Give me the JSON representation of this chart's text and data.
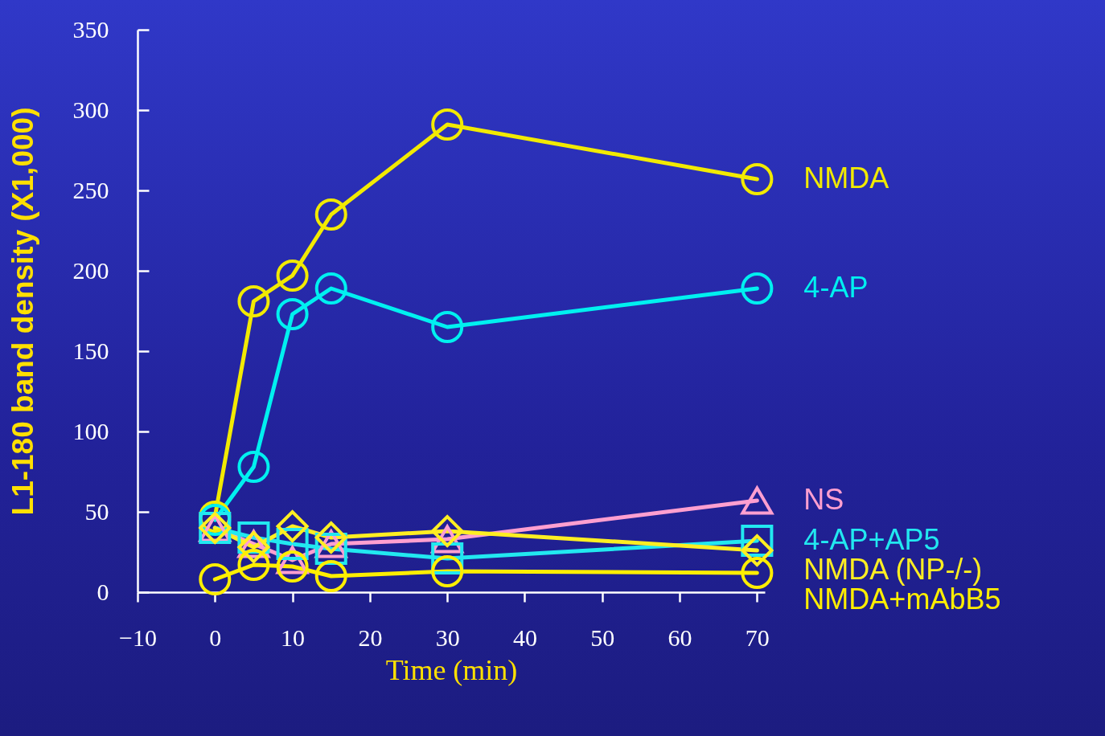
{
  "chart_data": {
    "type": "line",
    "xlabel": "Time (min)",
    "ylabel": "L1-180 band density (X1,000)",
    "x": [
      0,
      5,
      10,
      15,
      30,
      70
    ],
    "series": [
      {
        "name": "NMDA",
        "color": "#f2ea00",
        "marker": "circle",
        "values": [
          47,
          181,
          197,
          235,
          291,
          257
        ]
      },
      {
        "name": "4-AP",
        "color": "#00f0f0",
        "marker": "circle",
        "values": [
          45,
          78,
          173,
          189,
          165,
          189
        ]
      },
      {
        "name": "NS",
        "color": "#ff9fd0",
        "marker": "triangle",
        "values": [
          40,
          30,
          20,
          30,
          33,
          57
        ]
      },
      {
        "name": "4-AP+AP5",
        "color": "#22e8f0",
        "marker": "square",
        "values": [
          40,
          34,
          30,
          27,
          21,
          32
        ]
      },
      {
        "name": "NMDA (NP-/-)",
        "color": "#ffee22",
        "marker": "diamond",
        "values": [
          40,
          28,
          41,
          34,
          38,
          26
        ]
      },
      {
        "name": "NMDA+mAbB5",
        "color": "#ffee00",
        "marker": "circle",
        "values": [
          8,
          17,
          16,
          10,
          13,
          12
        ]
      }
    ],
    "xlim": [
      -10,
      71
    ],
    "ylim": [
      0,
      350
    ],
    "xticks": [
      -10,
      0,
      10,
      20,
      30,
      40,
      50,
      60,
      70
    ],
    "yticks": [
      0,
      50,
      100,
      150,
      200,
      250,
      300,
      350
    ],
    "grid": false,
    "legend": false
  }
}
